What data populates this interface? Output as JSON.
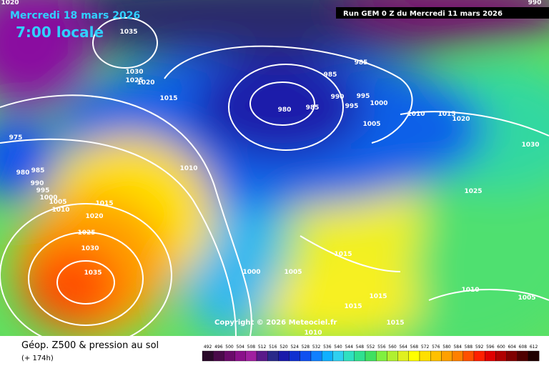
{
  "header": {
    "date": "Mercredi 18 mars 2026",
    "time": "7:00 locale",
    "run": "Run GEM 0 Z du Mercredi 11 mars 2026"
  },
  "copyright": "Copyright © 2026 Meteociel.fr",
  "footer": {
    "title": "Géop. Z500 & pression au sol",
    "lead": "(+ 174h)"
  },
  "isobars": [
    1035,
    1030,
    1025,
    1020,
    1015,
    985,
    985,
    990,
    995,
    995,
    1000,
    980,
    985,
    1005,
    1010,
    1015,
    1020,
    1030,
    1010,
    975,
    980,
    985,
    990,
    995,
    1000,
    1005,
    1010,
    1015,
    1020,
    1025,
    1030,
    1035,
    1025,
    1015,
    1005,
    1000,
    1015,
    1015,
    1015,
    1010,
    1010,
    1005,
    990,
    1020
  ],
  "colorbar": {
    "labels": [
      492,
      496,
      500,
      504,
      508,
      512,
      516,
      520,
      524,
      528,
      532,
      536,
      540,
      544,
      548,
      552,
      556,
      560,
      564,
      568,
      572,
      576,
      580,
      584,
      588,
      592,
      596,
      600,
      604,
      608,
      612
    ],
    "colors": [
      "#2a0a2a",
      "#4a0a4a",
      "#6a0a6a",
      "#8a108a",
      "#a020a0",
      "#5a1a8a",
      "#2a2a8a",
      "#1a1aaa",
      "#1030d0",
      "#1050f0",
      "#1080ff",
      "#10b0ff",
      "#30d0f0",
      "#30e0c0",
      "#30e090",
      "#40e060",
      "#80f040",
      "#b0f030",
      "#e0f020",
      "#ffff00",
      "#ffe000",
      "#ffc000",
      "#ffa000",
      "#ff8000",
      "#ff5000",
      "#ff2000",
      "#e00000",
      "#b00000",
      "#800000",
      "#500000",
      "#200000"
    ]
  }
}
